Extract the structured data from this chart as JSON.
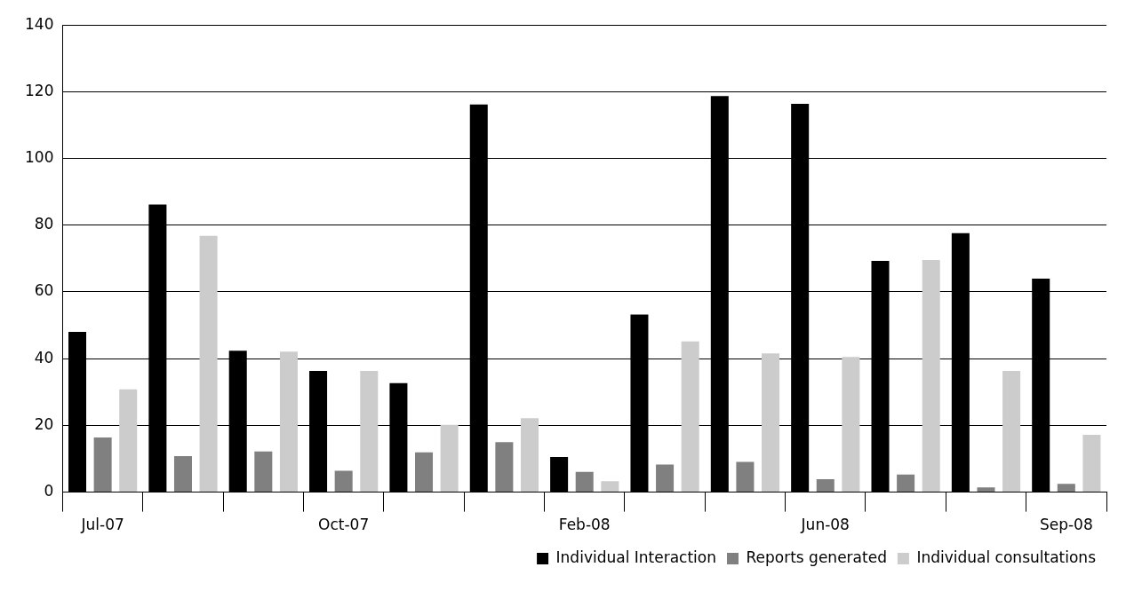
{
  "chart_data": {
    "type": "bar",
    "categories": [
      "Jul-07",
      null,
      null,
      "Oct-07",
      null,
      null,
      "Feb-08",
      null,
      null,
      "Jun-08",
      null,
      null,
      "Sep-08"
    ],
    "series": [
      {
        "name": "Individual Interaction",
        "color": "#000000",
        "values": [
          48,
          86.2,
          42.4,
          36.3,
          32.7,
          116.2,
          10.5,
          53.2,
          118.7,
          116.4,
          69.3,
          77.6,
          64
        ]
      },
      {
        "name": "Reports generated",
        "color": "#808080",
        "values": [
          16.4,
          10.8,
          12.2,
          6.4,
          11.9,
          15,
          6.1,
          8.3,
          9.1,
          3.9,
          5.3,
          1.4,
          2.5
        ]
      },
      {
        "name": "Individual consultations",
        "color": "#cccccc",
        "values": [
          30.8,
          76.8,
          42.1,
          36.3,
          20.2,
          22.2,
          3.3,
          45.2,
          41.6,
          40.5,
          69.6,
          36.3,
          17.2
        ]
      }
    ],
    "ylim": [
      0,
      140
    ],
    "yticks": [
      0,
      20,
      40,
      60,
      80,
      100,
      120,
      140
    ],
    "grid": "y",
    "legend": "bottom right"
  }
}
